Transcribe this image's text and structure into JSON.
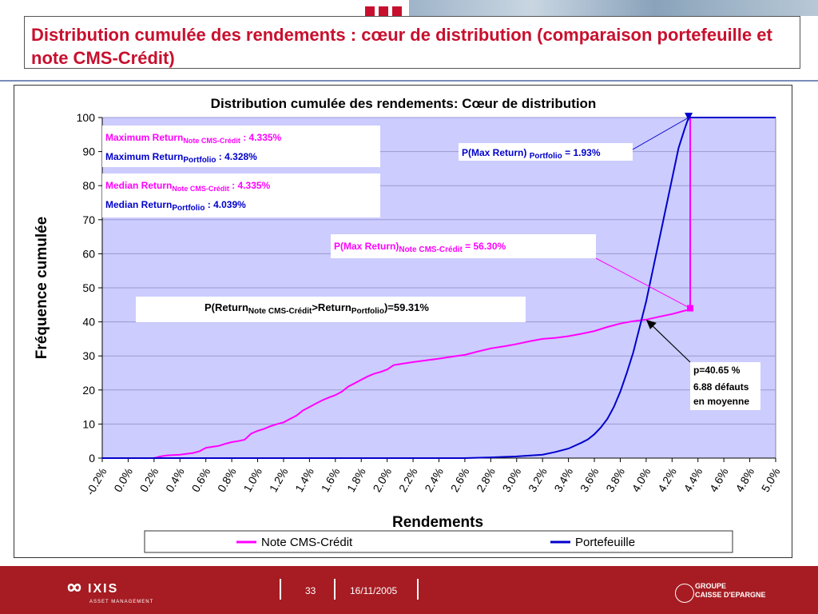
{
  "slide": {
    "title": "Distribution cumulée des rendements : cœur de distribution (comparaison portefeuille et note CMS-Crédit)",
    "page_number": "33",
    "date": "16/11/2005",
    "logo_main": "IXIS",
    "logo_sub": "ASSET MANAGEMENT",
    "group_label": "GROUPE",
    "group_name": "CAISSE D'EPARGNE"
  },
  "colors": {
    "note": "#ff00ff",
    "portfolio": "#0000cc",
    "plot_bg": "#ccccff",
    "footer": "#a61c22",
    "title": "#c8102e"
  },
  "chart_data": {
    "type": "line",
    "title": "Distribution cumulée des rendements: Cœur de distribution",
    "xlabel": "Rendements",
    "ylabel": "Fréquence cumulée",
    "xlim": [
      -0.2,
      5.0
    ],
    "ylim": [
      0,
      100
    ],
    "yticks": [
      "0",
      "10",
      "20",
      "30",
      "40",
      "50",
      "60",
      "70",
      "80",
      "90",
      "100"
    ],
    "xticks": [
      "-0.2%",
      "0.0%",
      "0.2%",
      "0.4%",
      "0.6%",
      "0.8%",
      "1.0%",
      "1.2%",
      "1.4%",
      "1.6%",
      "1.8%",
      "2.0%",
      "2.2%",
      "2.4%",
      "2.6%",
      "2.8%",
      "3.0%",
      "3.2%",
      "3.4%",
      "3.6%",
      "3.8%",
      "4.0%",
      "4.2%",
      "4.4%",
      "4.6%",
      "4.8%",
      "5.0%"
    ],
    "legend": [
      "Note CMS-Crédit",
      "Portefeuille"
    ],
    "series": [
      {
        "name": "Note CMS-Crédit",
        "x": [
          -0.2,
          0.2,
          0.25,
          0.3,
          0.4,
          0.5,
          0.55,
          0.6,
          0.65,
          0.7,
          0.75,
          0.8,
          0.85,
          0.9,
          0.95,
          1.0,
          1.05,
          1.1,
          1.15,
          1.2,
          1.25,
          1.3,
          1.35,
          1.4,
          1.45,
          1.5,
          1.55,
          1.6,
          1.65,
          1.7,
          1.75,
          1.8,
          1.85,
          1.9,
          1.95,
          2.0,
          2.05,
          2.1,
          2.15,
          2.2,
          2.3,
          2.4,
          2.5,
          2.6,
          2.7,
          2.8,
          2.9,
          3.0,
          3.1,
          3.2,
          3.3,
          3.4,
          3.5,
          3.6,
          3.7,
          3.8,
          3.9,
          4.0,
          4.1,
          4.2,
          4.3,
          4.335,
          4.34,
          4.34,
          5.0
        ],
        "y": [
          0,
          0,
          0.5,
          0.8,
          1.0,
          1.5,
          2.0,
          3.0,
          3.3,
          3.6,
          4.2,
          4.7,
          5.0,
          5.4,
          7.2,
          8.0,
          8.6,
          9.4,
          10.0,
          10.5,
          11.5,
          12.5,
          14.0,
          15.0,
          16.0,
          17.0,
          17.8,
          18.5,
          19.5,
          21.0,
          22.0,
          23.0,
          24.0,
          24.8,
          25.3,
          26.0,
          27.3,
          27.6,
          27.9,
          28.2,
          28.7,
          29.2,
          29.8,
          30.3,
          31.3,
          32.2,
          32.8,
          33.5,
          34.3,
          35.0,
          35.3,
          35.8,
          36.5,
          37.3,
          38.5,
          39.5,
          40.2,
          40.65,
          41.5,
          42.3,
          43.3,
          43.6,
          44.0,
          100,
          100
        ]
      },
      {
        "name": "Portefeuille",
        "x": [
          -0.2,
          2.6,
          2.8,
          3.0,
          3.2,
          3.3,
          3.4,
          3.5,
          3.55,
          3.6,
          3.65,
          3.7,
          3.75,
          3.8,
          3.85,
          3.9,
          3.95,
          4.0,
          4.05,
          4.1,
          4.15,
          4.2,
          4.25,
          4.3,
          4.328,
          5.0
        ],
        "y": [
          0,
          0,
          0.2,
          0.5,
          1.0,
          1.8,
          2.8,
          4.5,
          5.5,
          7.0,
          9.0,
          11.5,
          15.0,
          19.5,
          25.0,
          31.0,
          38.5,
          46.0,
          55.0,
          64.0,
          73.0,
          82.0,
          91.0,
          97.0,
          100,
          100
        ]
      }
    ],
    "annotations": {
      "max_note_prefix": "Maximum Return",
      "max_note_sub": "Note CMS-Crédit",
      "max_note_val": " : 4.335%",
      "max_port_prefix": "Maximum Return",
      "max_port_sub": "Portfolio",
      "max_port_val": " : 4.328%",
      "med_note_prefix": "Median Return",
      "med_note_sub": "Note CMS-Crédit",
      "med_note_val": " : 4.335%",
      "med_port_prefix": "Median Return",
      "med_port_sub": "Portfolio",
      "med_port_val": " : 4.039%",
      "pmax_port_prefix": "P(Max Return) ",
      "pmax_port_sub": "Portfolio",
      "pmax_port_val": " = 1.93%",
      "pmax_note_prefix": "P(Max Return)",
      "pmax_note_sub": "Note CMS-Crédit",
      "pmax_note_val": " = 56.30%",
      "pret_a": "P(Return",
      "pret_a_sub": "Note CMS-Crédit",
      "pret_b": ">Return",
      "pret_b_sub": "Portfolio",
      "pret_c": ")=59.31%",
      "p_line1": "p=40.65 %",
      "p_line2": "6.88 défauts",
      "p_line3": "en moyenne"
    }
  }
}
